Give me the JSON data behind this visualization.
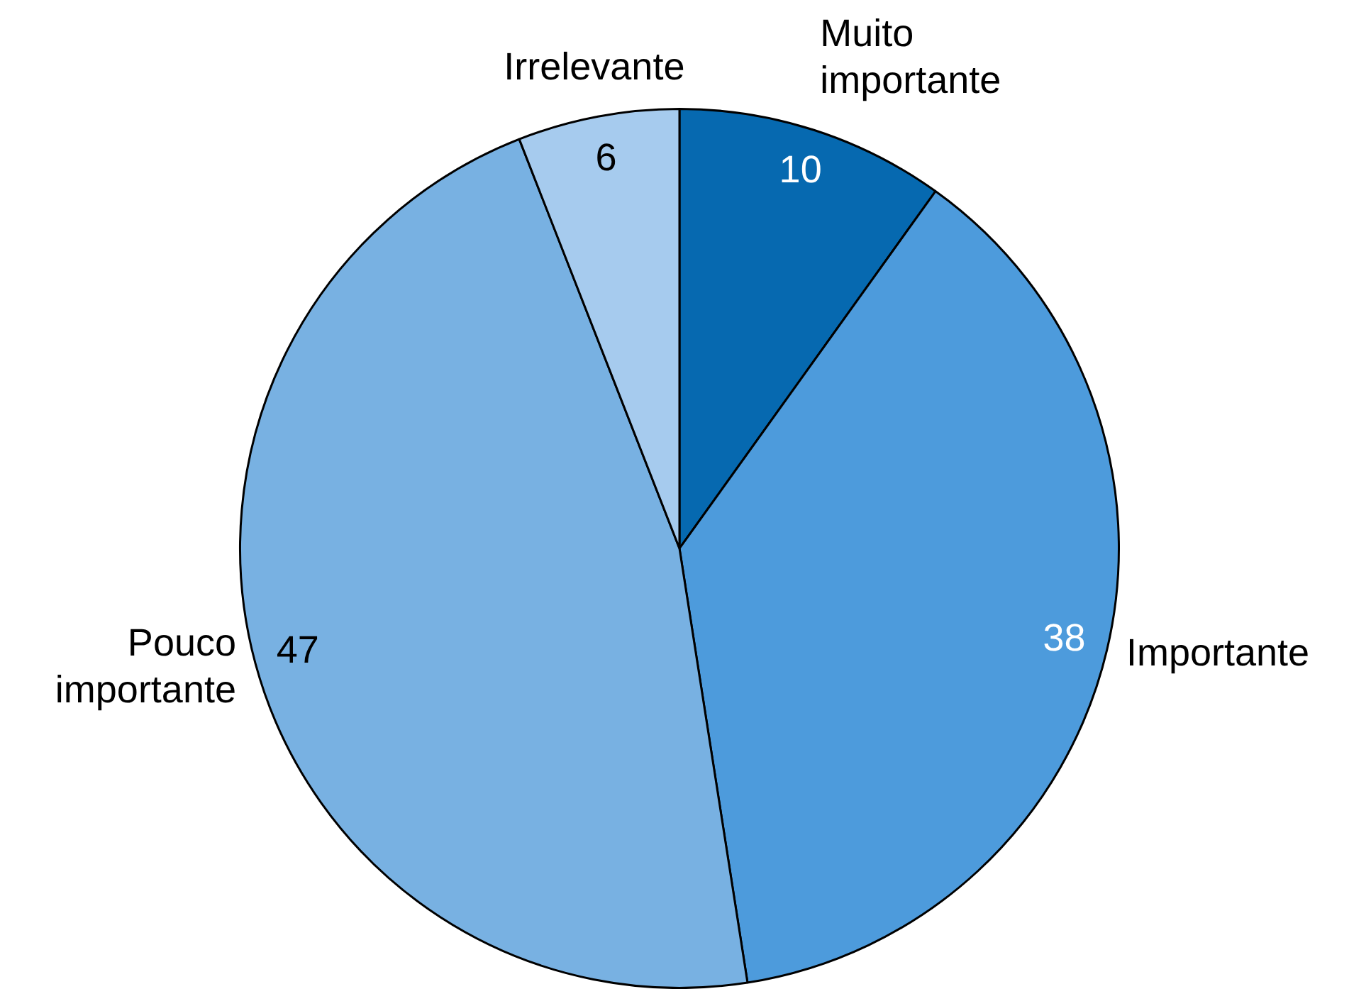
{
  "chart_data": {
    "type": "pie",
    "categories": [
      "Muito importante",
      "Importante",
      "Pouco importante",
      "Irrelevante"
    ],
    "values": [
      10,
      38,
      47,
      6
    ],
    "colors": [
      "#0669b0",
      "#4d9bdc",
      "#78b1e2",
      "#a6cbee"
    ],
    "data_labels": true,
    "legend": false
  }
}
